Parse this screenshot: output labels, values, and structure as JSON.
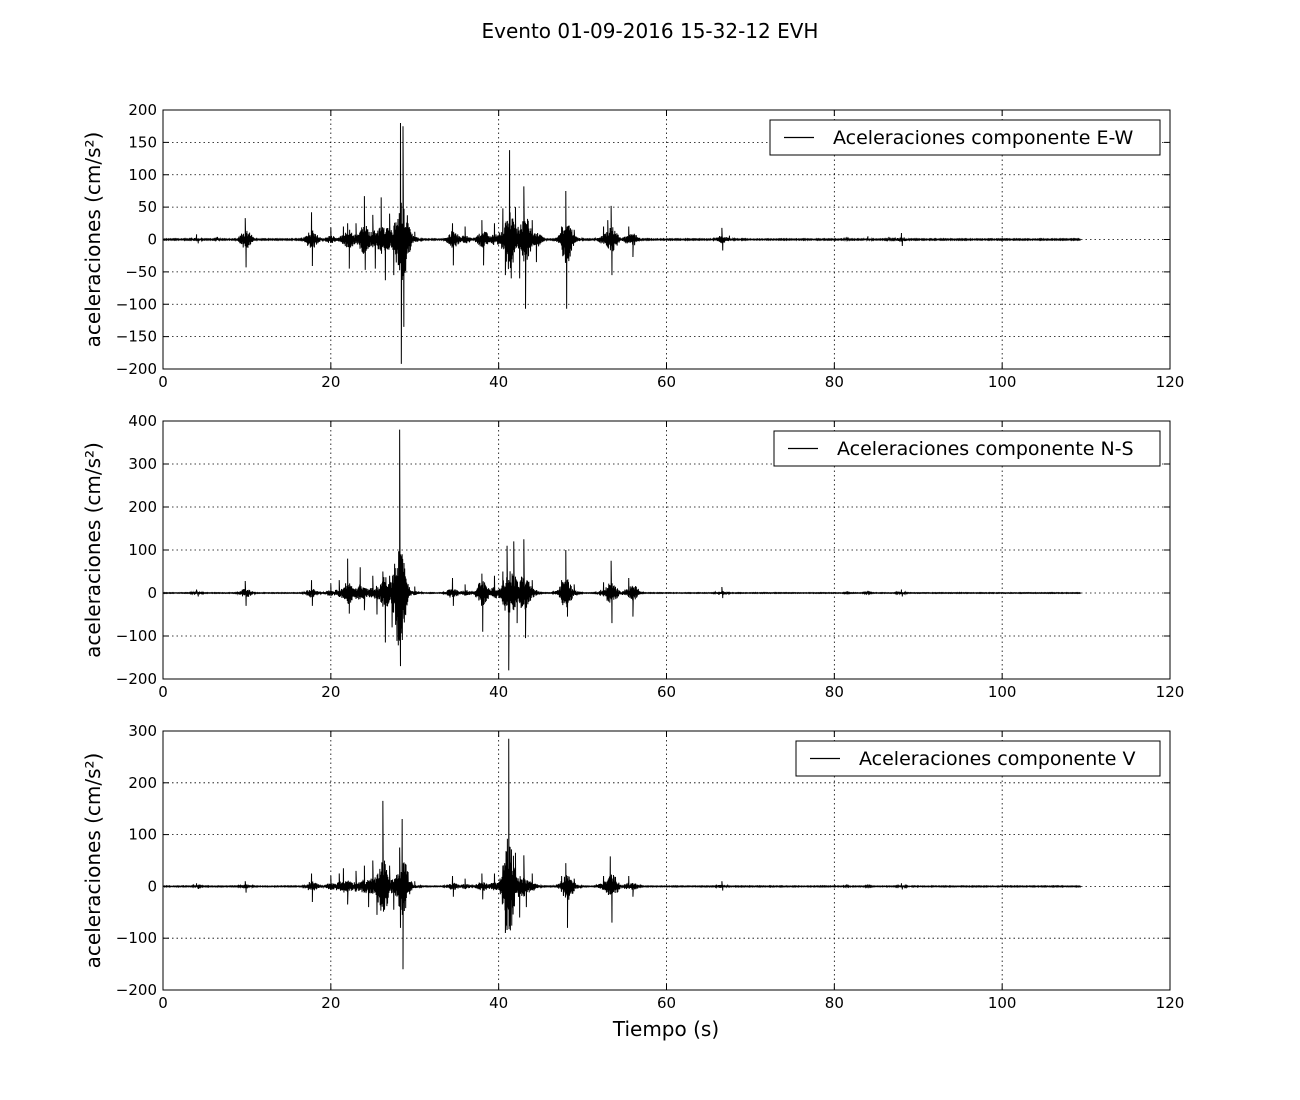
{
  "figure": {
    "title": "Evento 01-09-2016 15-32-12 EVH"
  },
  "chart_data": [
    {
      "type": "line",
      "title": "",
      "xlabel": "",
      "ylabel": "aceleraciones (cm/s²)",
      "xlim": [
        0,
        120
      ],
      "ylim": [
        -200,
        200
      ],
      "xticks": [
        0,
        20,
        40,
        60,
        80,
        100,
        120
      ],
      "yticks": [
        -200,
        -150,
        -100,
        -50,
        0,
        50,
        100,
        150,
        200
      ],
      "grid": true,
      "legend": {
        "position": "upper-right"
      },
      "series": [
        {
          "name": "Aceleraciones componente E-W",
          "color": "#000000",
          "x_range": [
            0,
            109.4
          ],
          "peaks": [
            {
              "t": 4.0,
              "v": 8
            },
            {
              "t": 4.2,
              "v": -6
            },
            {
              "t": 6.5,
              "v": 4
            },
            {
              "t": 9.8,
              "v": 33
            },
            {
              "t": 9.9,
              "v": -43
            },
            {
              "t": 17.7,
              "v": 42
            },
            {
              "t": 17.8,
              "v": -41
            },
            {
              "t": 20.0,
              "v": 18
            },
            {
              "t": 21.5,
              "v": 20
            },
            {
              "t": 22.0,
              "v": 25
            },
            {
              "t": 22.2,
              "v": -45
            },
            {
              "t": 23.0,
              "v": 25
            },
            {
              "t": 24.0,
              "v": 67
            },
            {
              "t": 24.1,
              "v": -47
            },
            {
              "t": 25.0,
              "v": 38
            },
            {
              "t": 25.3,
              "v": -45
            },
            {
              "t": 26.0,
              "v": 65
            },
            {
              "t": 26.5,
              "v": -63
            },
            {
              "t": 27.0,
              "v": 40
            },
            {
              "t": 27.5,
              "v": -55
            },
            {
              "t": 28.3,
              "v": 180
            },
            {
              "t": 28.4,
              "v": -192
            },
            {
              "t": 28.6,
              "v": 175
            },
            {
              "t": 28.7,
              "v": -135
            },
            {
              "t": 30.0,
              "v": 12
            },
            {
              "t": 34.5,
              "v": 25
            },
            {
              "t": 34.6,
              "v": -40
            },
            {
              "t": 36.0,
              "v": 20
            },
            {
              "t": 38.0,
              "v": 30
            },
            {
              "t": 38.2,
              "v": -40
            },
            {
              "t": 39.5,
              "v": 25
            },
            {
              "t": 40.5,
              "v": 48
            },
            {
              "t": 40.8,
              "v": -55
            },
            {
              "t": 41.3,
              "v": 138
            },
            {
              "t": 41.5,
              "v": -60
            },
            {
              "t": 42.0,
              "v": 50
            },
            {
              "t": 42.5,
              "v": -60
            },
            {
              "t": 43.0,
              "v": 82
            },
            {
              "t": 43.2,
              "v": -107
            },
            {
              "t": 44.0,
              "v": 30
            },
            {
              "t": 44.5,
              "v": -35
            },
            {
              "t": 47.5,
              "v": 20
            },
            {
              "t": 48.0,
              "v": 75
            },
            {
              "t": 48.1,
              "v": -107
            },
            {
              "t": 49.0,
              "v": 15
            },
            {
              "t": 52.5,
              "v": 20
            },
            {
              "t": 53.0,
              "v": 30
            },
            {
              "t": 53.4,
              "v": 52
            },
            {
              "t": 53.5,
              "v": -55
            },
            {
              "t": 55.5,
              "v": 20
            },
            {
              "t": 56.0,
              "v": -27
            },
            {
              "t": 66.6,
              "v": 18
            },
            {
              "t": 66.7,
              "v": -17
            },
            {
              "t": 67.5,
              "v": 6
            },
            {
              "t": 81.5,
              "v": 4
            },
            {
              "t": 84.0,
              "v": 5
            },
            {
              "t": 86.5,
              "v": 4
            },
            {
              "t": 88.0,
              "v": 10
            },
            {
              "t": 88.1,
              "v": -10
            }
          ]
        }
      ]
    },
    {
      "type": "line",
      "title": "",
      "xlabel": "",
      "ylabel": "aceleraciones (cm/s²)",
      "xlim": [
        0,
        120
      ],
      "ylim": [
        -200,
        400
      ],
      "xticks": [
        0,
        20,
        40,
        60,
        80,
        100,
        120
      ],
      "yticks": [
        -200,
        -100,
        0,
        100,
        200,
        300,
        400
      ],
      "grid": true,
      "legend": {
        "position": "upper-right"
      },
      "series": [
        {
          "name": "Aceleraciones componente N-S",
          "color": "#000000",
          "x_range": [
            0,
            109.4
          ],
          "peaks": [
            {
              "t": 4.0,
              "v": 8
            },
            {
              "t": 4.2,
              "v": -8
            },
            {
              "t": 9.8,
              "v": 28
            },
            {
              "t": 9.9,
              "v": -30
            },
            {
              "t": 17.7,
              "v": 30
            },
            {
              "t": 17.8,
              "v": -30
            },
            {
              "t": 20.0,
              "v": 20
            },
            {
              "t": 21.0,
              "v": 30
            },
            {
              "t": 22.0,
              "v": 80
            },
            {
              "t": 22.2,
              "v": -48
            },
            {
              "t": 23.5,
              "v": 60
            },
            {
              "t": 24.0,
              "v": -40
            },
            {
              "t": 25.0,
              "v": 40
            },
            {
              "t": 25.5,
              "v": -50
            },
            {
              "t": 26.2,
              "v": 50
            },
            {
              "t": 26.5,
              "v": -115
            },
            {
              "t": 27.0,
              "v": 40
            },
            {
              "t": 27.3,
              "v": -80
            },
            {
              "t": 28.2,
              "v": 380
            },
            {
              "t": 28.3,
              "v": -170
            },
            {
              "t": 28.5,
              "v": 90
            },
            {
              "t": 28.7,
              "v": -60
            },
            {
              "t": 30.0,
              "v": 15
            },
            {
              "t": 34.5,
              "v": 35
            },
            {
              "t": 34.6,
              "v": -30
            },
            {
              "t": 36.0,
              "v": 20
            },
            {
              "t": 38.0,
              "v": 45
            },
            {
              "t": 38.1,
              "v": -90
            },
            {
              "t": 39.5,
              "v": 40
            },
            {
              "t": 40.5,
              "v": 50
            },
            {
              "t": 41.0,
              "v": 110
            },
            {
              "t": 41.2,
              "v": -180
            },
            {
              "t": 41.8,
              "v": 120
            },
            {
              "t": 42.2,
              "v": -70
            },
            {
              "t": 43.0,
              "v": 125
            },
            {
              "t": 43.2,
              "v": -105
            },
            {
              "t": 44.0,
              "v": 30
            },
            {
              "t": 47.5,
              "v": 30
            },
            {
              "t": 48.0,
              "v": 100
            },
            {
              "t": 48.2,
              "v": -55
            },
            {
              "t": 49.0,
              "v": 20
            },
            {
              "t": 52.5,
              "v": 25
            },
            {
              "t": 53.4,
              "v": 75
            },
            {
              "t": 53.5,
              "v": -70
            },
            {
              "t": 55.5,
              "v": 35
            },
            {
              "t": 56.0,
              "v": -55
            },
            {
              "t": 66.6,
              "v": 14
            },
            {
              "t": 66.7,
              "v": -12
            },
            {
              "t": 81.5,
              "v": 4
            },
            {
              "t": 84.0,
              "v": 5
            },
            {
              "t": 88.0,
              "v": 8
            },
            {
              "t": 88.1,
              "v": -8
            }
          ]
        }
      ]
    },
    {
      "type": "line",
      "title": "",
      "xlabel": "Tiempo (s)",
      "ylabel": "aceleraciones (cm/s²)",
      "xlim": [
        0,
        120
      ],
      "ylim": [
        -200,
        300
      ],
      "xticks": [
        0,
        20,
        40,
        60,
        80,
        100,
        120
      ],
      "yticks": [
        -200,
        -100,
        0,
        100,
        200,
        300
      ],
      "grid": true,
      "legend": {
        "position": "upper-right"
      },
      "series": [
        {
          "name": "Aceleraciones componente V",
          "color": "#000000",
          "x_range": [
            0,
            109.4
          ],
          "peaks": [
            {
              "t": 4.0,
              "v": 6
            },
            {
              "t": 4.2,
              "v": -5
            },
            {
              "t": 9.8,
              "v": 10
            },
            {
              "t": 9.9,
              "v": -12
            },
            {
              "t": 17.7,
              "v": 25
            },
            {
              "t": 17.8,
              "v": -30
            },
            {
              "t": 20.0,
              "v": 20
            },
            {
              "t": 21.0,
              "v": 25
            },
            {
              "t": 21.5,
              "v": 35
            },
            {
              "t": 22.0,
              "v": -35
            },
            {
              "t": 23.0,
              "v": 30
            },
            {
              "t": 24.0,
              "v": 40
            },
            {
              "t": 24.5,
              "v": -40
            },
            {
              "t": 25.0,
              "v": 50
            },
            {
              "t": 25.5,
              "v": -55
            },
            {
              "t": 26.2,
              "v": 165
            },
            {
              "t": 26.4,
              "v": -45
            },
            {
              "t": 27.0,
              "v": 40
            },
            {
              "t": 27.5,
              "v": -45
            },
            {
              "t": 28.2,
              "v": 75
            },
            {
              "t": 28.3,
              "v": -80
            },
            {
              "t": 28.5,
              "v": 130
            },
            {
              "t": 28.6,
              "v": -160
            },
            {
              "t": 30.0,
              "v": 10
            },
            {
              "t": 34.5,
              "v": 20
            },
            {
              "t": 34.6,
              "v": -20
            },
            {
              "t": 36.0,
              "v": 15
            },
            {
              "t": 38.0,
              "v": 25
            },
            {
              "t": 38.1,
              "v": -25
            },
            {
              "t": 39.5,
              "v": 25
            },
            {
              "t": 40.5,
              "v": 40
            },
            {
              "t": 40.8,
              "v": -90
            },
            {
              "t": 41.2,
              "v": 285
            },
            {
              "t": 41.4,
              "v": -85
            },
            {
              "t": 42.0,
              "v": 65
            },
            {
              "t": 42.5,
              "v": -60
            },
            {
              "t": 43.0,
              "v": 60
            },
            {
              "t": 43.3,
              "v": -40
            },
            {
              "t": 44.0,
              "v": 25
            },
            {
              "t": 47.5,
              "v": 20
            },
            {
              "t": 48.0,
              "v": 45
            },
            {
              "t": 48.2,
              "v": -80
            },
            {
              "t": 49.0,
              "v": 15
            },
            {
              "t": 52.5,
              "v": 20
            },
            {
              "t": 53.3,
              "v": 58
            },
            {
              "t": 53.5,
              "v": -70
            },
            {
              "t": 55.5,
              "v": 20
            },
            {
              "t": 56.0,
              "v": -20
            },
            {
              "t": 66.6,
              "v": 10
            },
            {
              "t": 66.7,
              "v": -8
            },
            {
              "t": 81.5,
              "v": 4
            },
            {
              "t": 84.0,
              "v": 4
            },
            {
              "t": 88.0,
              "v": 6
            },
            {
              "t": 88.1,
              "v": -6
            }
          ]
        }
      ]
    }
  ]
}
